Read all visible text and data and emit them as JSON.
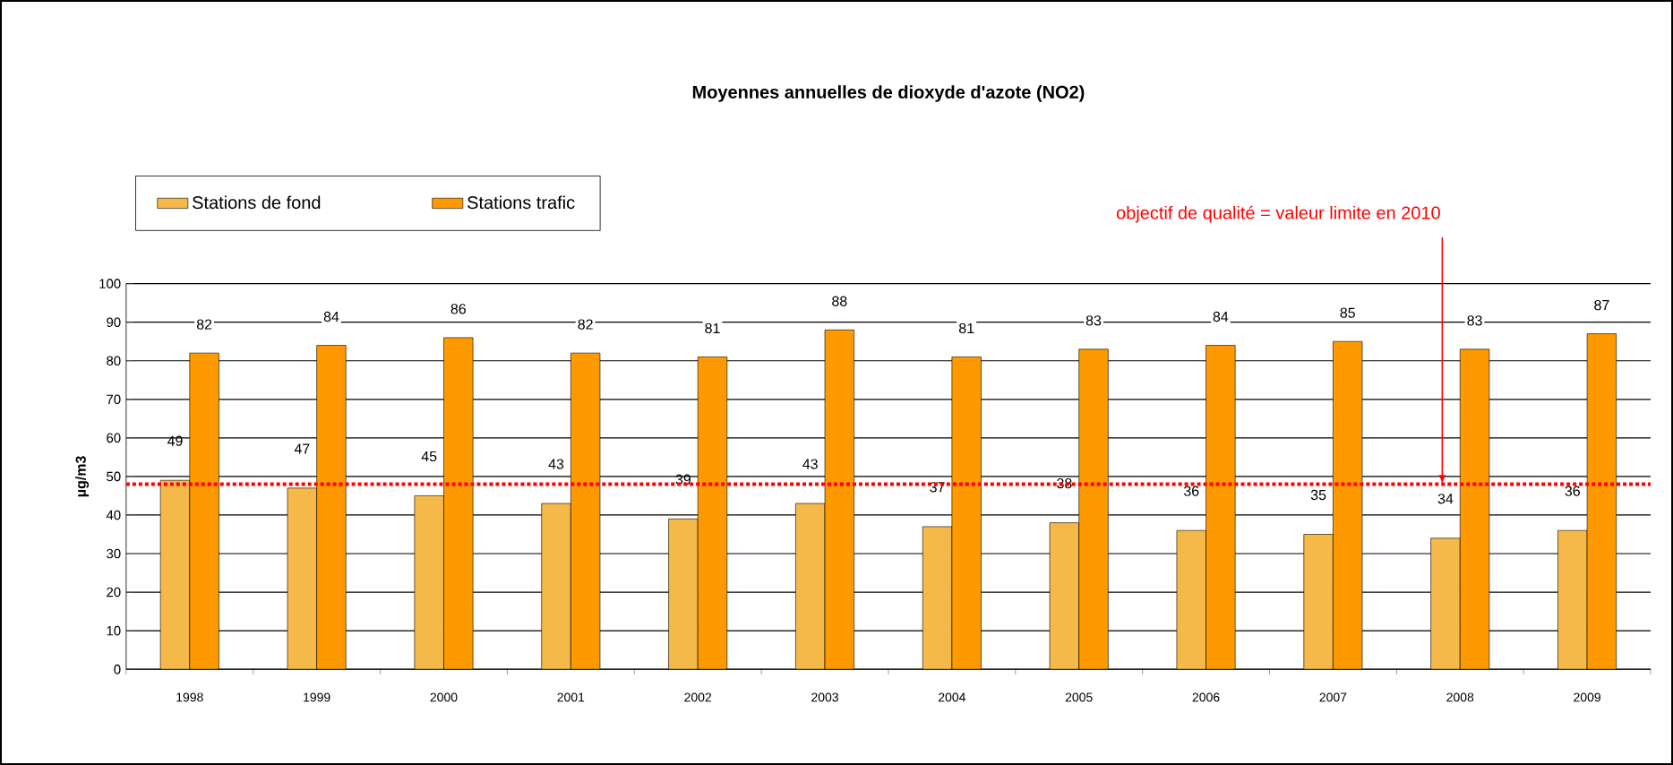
{
  "chart_data": {
    "type": "bar",
    "title": "Moyennes annuelles de dioxyde d'azote (NO2)",
    "ylabel": "µg/m3",
    "categories": [
      "1998",
      "1999",
      "2000",
      "2001",
      "2002",
      "2003",
      "2004",
      "2005",
      "2006",
      "2007",
      "2008",
      "2009"
    ],
    "series": [
      {
        "name": "Stations de fond",
        "color": "#f5b94a",
        "values": [
          49,
          47,
          45,
          43,
          39,
          43,
          37,
          38,
          36,
          35,
          34,
          36
        ]
      },
      {
        "name": "Stations trafic",
        "color": "#ff9900",
        "values": [
          82,
          84,
          86,
          82,
          81,
          88,
          81,
          83,
          84,
          85,
          83,
          87
        ]
      }
    ],
    "ylim": [
      0,
      100
    ],
    "yticks": [
      0,
      10,
      20,
      30,
      40,
      50,
      60,
      70,
      80,
      90,
      100
    ],
    "grid": "y",
    "legend": "top left",
    "data_labels": true,
    "ref_lines": [
      {
        "axis": "y",
        "value": 48,
        "label": "objectif de qualité = valeur limite en 2010",
        "color": "#ff0000",
        "line_style": "dotted"
      }
    ]
  }
}
